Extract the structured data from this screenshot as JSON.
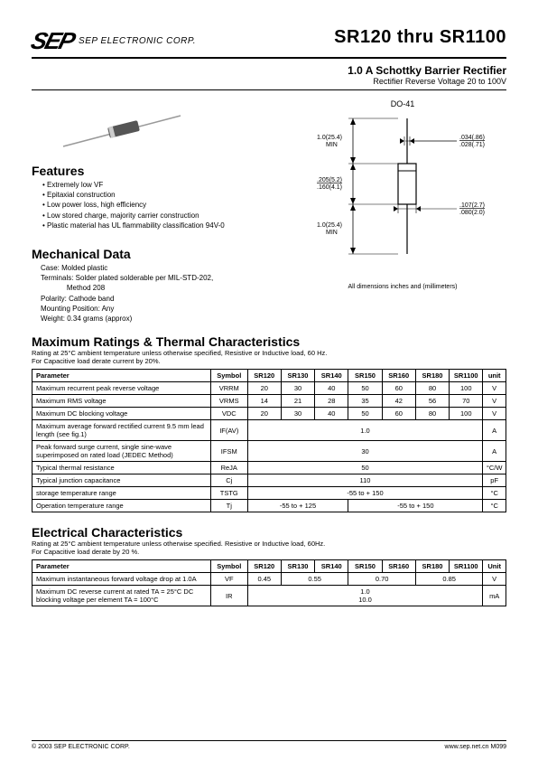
{
  "header": {
    "logo_text": "SEP",
    "corp_text": "SEP ELECTRONIC CORP.",
    "main_title": "SR120 thru SR1100",
    "subtitle1": "1.0 A Schottky Barrier Rectifier",
    "subtitle2": "Rectifier Reverse Voltage 20 to 100V"
  },
  "package": {
    "label": "DO-41",
    "dims": {
      "lead_min": "1.0(25.4) MIN",
      "body_len": ".205(5.2) / .160(4.1)",
      "lead_dia": ".034(.86) / .028(.71)",
      "body_dia": ".107(2.7) / .080(2.0)"
    },
    "note": "All dimensions inches and (millimeters)"
  },
  "features": {
    "heading": "Features",
    "items": [
      "Extremely low VF",
      "Epitaxial construction",
      "Low power loss, high efficiency",
      "Low stored charge, majority carrier construction",
      "Plastic material has UL flammability classification 94V-0"
    ]
  },
  "mechanical": {
    "heading": "Mechanical Data",
    "lines": [
      "Case: Molded plastic",
      "Terminals: Solder plated solderable per MIL-STD-202,",
      "             Method 208",
      "Polarity: Cathode band",
      "Mounting Position: Any",
      "Weight: 0.34 grams (approx)"
    ]
  },
  "ratings": {
    "heading": "Maximum Ratings & Thermal Characteristics",
    "note": "Rating at 25°C ambient temperature unless otherwise specified, Resistive or Inductive load, 60 Hz.\nFor Capacitive load derate current by 20%.",
    "columns": [
      "Parameter",
      "Symbol",
      "SR120",
      "SR130",
      "SR140",
      "SR150",
      "SR160",
      "SR180",
      "SR1100",
      "unit"
    ],
    "rows": [
      {
        "param": "Maximum recurrent peak reverse voltage",
        "symbol": "VRRM",
        "values": [
          "20",
          "30",
          "40",
          "50",
          "60",
          "80",
          "100"
        ],
        "unit": "V"
      },
      {
        "param": "Maximum RMS voltage",
        "symbol": "VRMS",
        "values": [
          "14",
          "21",
          "28",
          "35",
          "42",
          "56",
          "70"
        ],
        "unit": "V"
      },
      {
        "param": "Maximum DC blocking voltage",
        "symbol": "VDC",
        "values": [
          "20",
          "30",
          "40",
          "50",
          "60",
          "80",
          "100"
        ],
        "unit": "V"
      },
      {
        "param": "Maximum average forward rectified current 9.5 mm lead length (see fig.1)",
        "symbol": "IF(AV)",
        "span": "1.0",
        "unit": "A"
      },
      {
        "param": "Peak forward surge current, single sine-wave superimposed on rated load (JEDEC Method)",
        "symbol": "IFSM",
        "span": "30",
        "unit": "A"
      },
      {
        "param": "Typical  thermal resistance",
        "symbol": "ReJA",
        "span": "50",
        "unit": "°C/W"
      },
      {
        "param": "Typical junction capacitance",
        "symbol": "Cj",
        "span": "110",
        "unit": "pF"
      },
      {
        "param": "storage temperature range",
        "symbol": "TSTG",
        "span": "-55 to + 150",
        "unit": "°C"
      },
      {
        "param": "Operation temperature range",
        "symbol": "Tj",
        "span2": [
          "-55 to + 125",
          "-55 to + 150"
        ],
        "unit": "°C"
      }
    ]
  },
  "electrical": {
    "heading": "Electrical Characteristics",
    "note": "Rating at 25°C ambient temperature unless otherwise specified. Resistive or Inductive load, 60Hz.\nFor Capacitive load derate by 20 %.",
    "columns": [
      "Parameter",
      "Symbol",
      "SR120",
      "SR130",
      "SR140",
      "SR150",
      "SR160",
      "SR180",
      "SR1100",
      "Unit"
    ],
    "rows": [
      {
        "param": "Maximum instantaneous forward voltage drop at 1.0A",
        "symbol": "VF",
        "groups": [
          {
            "v": "0.45",
            "span": 1
          },
          {
            "v": "0.55",
            "span": 2
          },
          {
            "v": "0.70",
            "span": 2
          },
          {
            "v": "0.85",
            "span": 2
          }
        ],
        "unit": "V"
      },
      {
        "param": "Maximum DC reverse current at rated  TA = 25°C\nDC blocking voltage per element       TA = 100°C",
        "symbol": "IR",
        "span": "1.0\n10.0",
        "unit": "mA"
      }
    ]
  },
  "footer": {
    "left": "© 2003  SEP ELECTRONIC CORP.",
    "right": "www.sep.net.cn     M099"
  },
  "colors": {
    "text": "#000000",
    "bg": "#ffffff",
    "diode_body": "#555555",
    "diode_band": "#cccccc",
    "lead": "#999999"
  }
}
